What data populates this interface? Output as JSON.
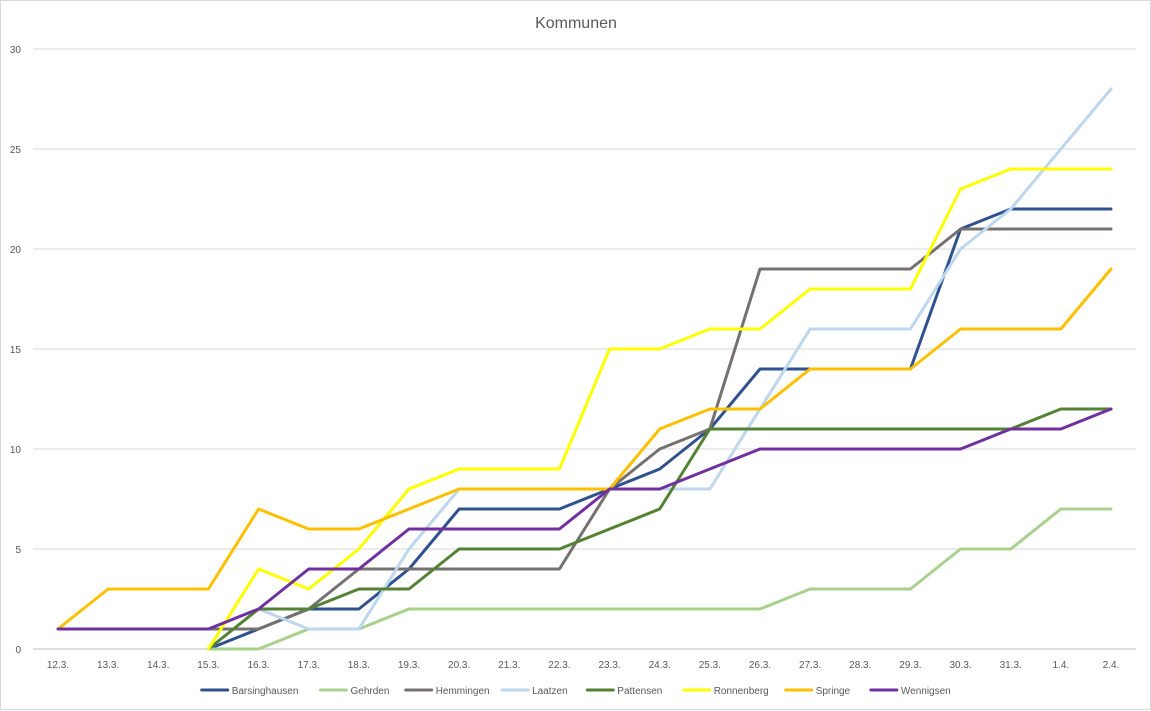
{
  "chart_data": {
    "type": "line",
    "title": "Kommunen",
    "xlabel": "",
    "ylabel": "",
    "ylim": [
      0,
      30
    ],
    "yticks": [
      0,
      5,
      10,
      15,
      20,
      25,
      30
    ],
    "grid": true,
    "legend_position": "bottom",
    "categories": [
      "12.3.",
      "13.3.",
      "14.3.",
      "15.3.",
      "16.3.",
      "17.3.",
      "18.3.",
      "19.3.",
      "20.3.",
      "21.3.",
      "22.3.",
      "23.3.",
      "24.3.",
      "25.3.",
      "26.3.",
      "27.3.",
      "28.3.",
      "29.3.",
      "30.3.",
      "31.3.",
      "1.4.",
      "2.4."
    ],
    "series": [
      {
        "name": "Barsinghausen",
        "color": "#2f528f",
        "values": [
          null,
          null,
          null,
          0,
          1,
          2,
          2,
          4,
          7,
          7,
          7,
          8,
          9,
          11,
          14,
          14,
          14,
          14,
          21,
          22,
          22,
          22
        ]
      },
      {
        "name": "Gehrden",
        "color": "#a9d18e",
        "values": [
          null,
          null,
          null,
          0,
          0,
          1,
          1,
          2,
          2,
          2,
          2,
          2,
          2,
          2,
          2,
          3,
          3,
          3,
          5,
          5,
          7,
          7
        ]
      },
      {
        "name": "Hemmingen",
        "color": "#767171",
        "values": [
          null,
          null,
          null,
          1,
          1,
          2,
          4,
          4,
          4,
          4,
          4,
          8,
          10,
          11,
          19,
          19,
          19,
          19,
          21,
          21,
          21,
          21
        ]
      },
      {
        "name": "Laatzen",
        "color": "#bdd7ee",
        "values": [
          null,
          null,
          null,
          null,
          2,
          1,
          1,
          5,
          8,
          8,
          8,
          8,
          8,
          8,
          12,
          16,
          16,
          16,
          20,
          22,
          25,
          28
        ]
      },
      {
        "name": "Pattensen",
        "color": "#548235",
        "values": [
          null,
          null,
          null,
          0,
          2,
          2,
          3,
          3,
          5,
          5,
          5,
          6,
          7,
          11,
          11,
          11,
          11,
          11,
          11,
          11,
          12,
          12
        ]
      },
      {
        "name": "Ronnenberg",
        "color": "#ffff00",
        "values": [
          null,
          null,
          null,
          0,
          4,
          3,
          5,
          8,
          9,
          9,
          9,
          15,
          15,
          16,
          16,
          18,
          18,
          18,
          23,
          24,
          24,
          24
        ]
      },
      {
        "name": "Springe",
        "color": "#ffc000",
        "values": [
          1,
          3,
          3,
          3,
          7,
          6,
          6,
          7,
          8,
          8,
          8,
          8,
          11,
          12,
          12,
          14,
          14,
          14,
          16,
          16,
          16,
          19
        ]
      },
      {
        "name": "Wennigsen",
        "color": "#7030a0",
        "values": [
          1,
          1,
          1,
          1,
          2,
          4,
          4,
          6,
          6,
          6,
          6,
          8,
          8,
          9,
          10,
          10,
          10,
          10,
          10,
          11,
          11,
          12
        ]
      }
    ]
  }
}
